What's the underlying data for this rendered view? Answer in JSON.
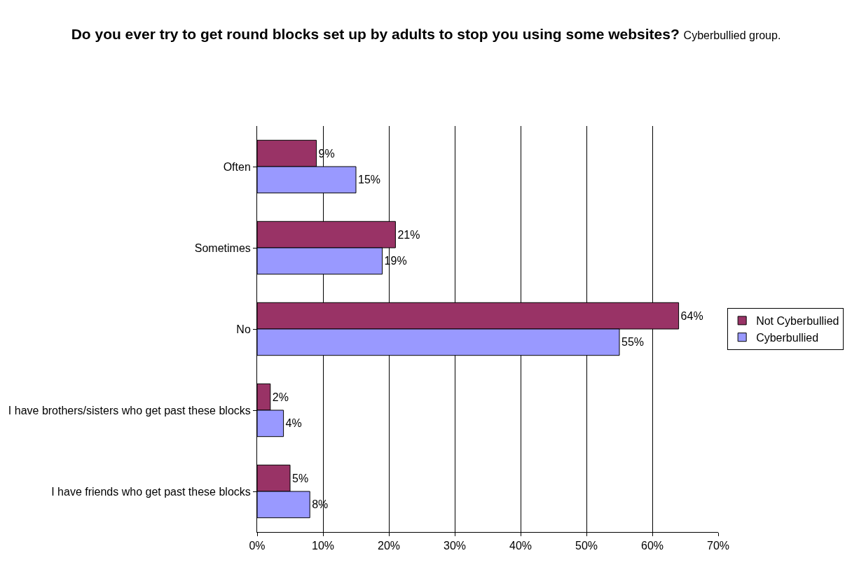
{
  "chart_data": {
    "type": "bar",
    "orientation": "horizontal",
    "title": "Do you ever try to get round blocks set up by adults to stop you using some websites?",
    "subtitle": "Cyberbullied group.",
    "categories": [
      "Often",
      "Sometimes",
      "No",
      "I have brothers/sisters who get past these blocks",
      "I have friends who get past these blocks"
    ],
    "series": [
      {
        "name": "Not Cyberbullied",
        "color": "#993366",
        "values": [
          9,
          21,
          64,
          2,
          5
        ],
        "value_labels": [
          "9%",
          "21%",
          "64%",
          "2%",
          "5%"
        ]
      },
      {
        "name": "Cyberbullied",
        "color": "#9999ff",
        "values": [
          15,
          19,
          55,
          4,
          8
        ],
        "value_labels": [
          "15%",
          "19%",
          "55%",
          "4%",
          "8%"
        ]
      }
    ],
    "xlim": [
      0,
      70
    ],
    "xticks": [
      {
        "value": 0,
        "label": "0%"
      },
      {
        "value": 10,
        "label": "10%"
      },
      {
        "value": 20,
        "label": "20%"
      },
      {
        "value": 30,
        "label": "30%"
      },
      {
        "value": 40,
        "label": "40%"
      },
      {
        "value": 50,
        "label": "50%"
      },
      {
        "value": 60,
        "label": "60%"
      },
      {
        "value": 70,
        "label": "70%"
      }
    ],
    "grid": "x",
    "legend": "right"
  }
}
